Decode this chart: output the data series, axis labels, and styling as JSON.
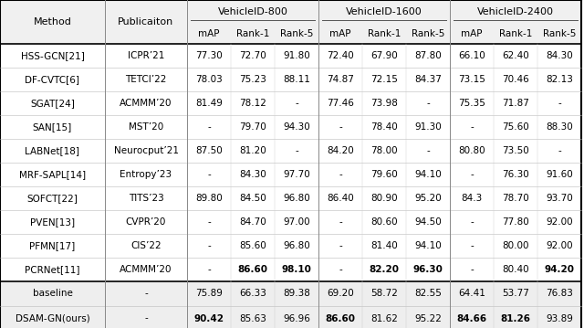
{
  "col_headers_top": [
    "Method",
    "Publicaiton",
    "VehicleID-800",
    "",
    "",
    "VehicleID-1600",
    "",
    "",
    "VehicleID-2400",
    "",
    ""
  ],
  "col_headers_sub": [
    "",
    "",
    "mAP",
    "Rank-1",
    "Rank-5",
    "mAP",
    "Rank-1",
    "Rank-5",
    "mAP",
    "Rank-1",
    "Rank-5"
  ],
  "rows": [
    [
      "HSS-GCN[21]",
      "ICPR’21",
      "77.30",
      "72.70",
      "91.80",
      "72.40",
      "67.90",
      "87.80",
      "66.10",
      "62.40",
      "84.30"
    ],
    [
      "DF-CVTC[6]",
      "TETCI’22",
      "78.03",
      "75.23",
      "88.11",
      "74.87",
      "72.15",
      "84.37",
      "73.15",
      "70.46",
      "82.13"
    ],
    [
      "SGAT[24]",
      "ACMMM’20",
      "81.49",
      "78.12",
      "-",
      "77.46",
      "73.98",
      "-",
      "75.35",
      "71.87",
      "-"
    ],
    [
      "SAN[15]",
      "MST’20",
      "-",
      "79.70",
      "94.30",
      "-",
      "78.40",
      "91.30",
      "-",
      "75.60",
      "88.30"
    ],
    [
      "LABNet[18]",
      "Neurocput’21",
      "87.50",
      "81.20",
      "-",
      "84.20",
      "78.00",
      "-",
      "80.80",
      "73.50",
      "-"
    ],
    [
      "MRF-SAPL[14]",
      "Entropy’23",
      "-",
      "84.30",
      "97.70",
      "-",
      "79.60",
      "94.10",
      "-",
      "76.30",
      "91.60"
    ],
    [
      "SOFCT[22]",
      "TITS’23",
      "89.80",
      "84.50",
      "96.80",
      "86.40",
      "80.90",
      "95.20",
      "84.3",
      "78.70",
      "93.70"
    ],
    [
      "PVEN[13]",
      "CVPR’20",
      "-",
      "84.70",
      "97.00",
      "-",
      "80.60",
      "94.50",
      "-",
      "77.80",
      "92.00"
    ],
    [
      "PFMN[17]",
      "CIS’22",
      "-",
      "85.60",
      "96.80",
      "-",
      "81.40",
      "94.10",
      "-",
      "80.00",
      "92.00"
    ],
    [
      "PCRNet[11]",
      "ACMMM’20",
      "-",
      "86.60",
      "98.10",
      "-",
      "82.20",
      "96.30",
      "-",
      "80.40",
      "94.20"
    ]
  ],
  "rows_bold": [
    [
      false,
      false,
      false,
      false,
      false,
      false,
      false,
      false,
      false,
      false,
      false
    ],
    [
      false,
      false,
      false,
      false,
      false,
      false,
      false,
      false,
      false,
      false,
      false
    ],
    [
      false,
      false,
      false,
      false,
      false,
      false,
      false,
      false,
      false,
      false,
      false
    ],
    [
      false,
      false,
      false,
      false,
      false,
      false,
      false,
      false,
      false,
      false,
      false
    ],
    [
      false,
      false,
      false,
      false,
      false,
      false,
      false,
      false,
      false,
      false,
      false
    ],
    [
      false,
      false,
      false,
      false,
      false,
      false,
      false,
      false,
      false,
      false,
      false
    ],
    [
      false,
      false,
      false,
      false,
      false,
      false,
      false,
      false,
      false,
      false,
      false
    ],
    [
      false,
      false,
      false,
      false,
      false,
      false,
      false,
      false,
      false,
      false,
      false
    ],
    [
      false,
      false,
      false,
      false,
      false,
      false,
      false,
      false,
      false,
      false,
      false
    ],
    [
      false,
      false,
      false,
      true,
      true,
      false,
      true,
      true,
      false,
      false,
      true
    ]
  ],
  "bottom_rows": [
    [
      "baseline",
      "-",
      "75.89",
      "66.33",
      "89.38",
      "69.20",
      "58.72",
      "82.55",
      "64.41",
      "53.77",
      "76.83"
    ],
    [
      "DSAM-GN(ours)",
      "-",
      "90.42",
      "85.63",
      "96.96",
      "86.60",
      "81.62",
      "95.22",
      "84.66",
      "81.26",
      "93.89"
    ]
  ],
  "bottom_bold": [
    [
      false,
      false,
      false,
      false,
      false,
      false,
      false,
      false,
      false,
      false,
      false
    ],
    [
      false,
      false,
      true,
      false,
      false,
      true,
      false,
      false,
      true,
      true,
      false
    ]
  ],
  "font_size": 7.5,
  "header_font_size": 8.0,
  "bg_white": "#ffffff",
  "bg_gray": "#eeeeee",
  "bg_header": "#f0f0f0"
}
